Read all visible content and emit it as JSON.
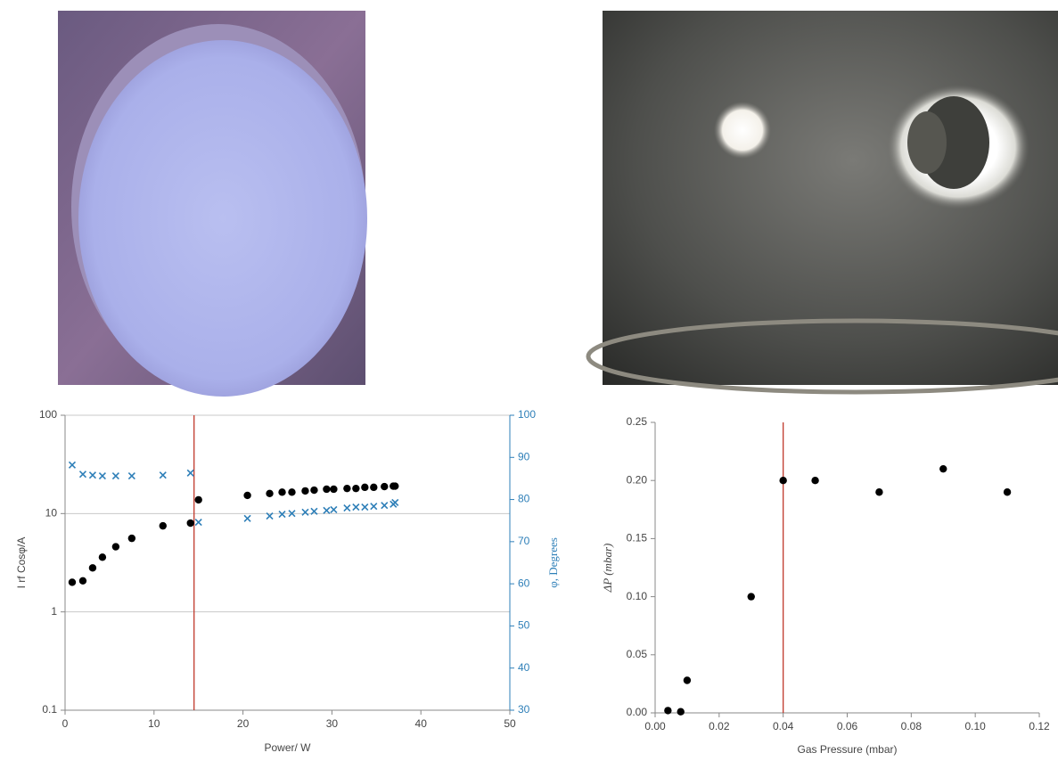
{
  "chart_data": [
    {
      "type": "scatter",
      "xlabel": "Power/ W",
      "ylabel": "I rf Cosφ/A",
      "y2label": "φ, Degrees",
      "xlim": [
        0,
        50
      ],
      "xticks": [
        0,
        10,
        20,
        30,
        40,
        50
      ],
      "ylim": [
        0.1,
        100
      ],
      "yticks": [
        0.1,
        1,
        10,
        100
      ],
      "yscale": "log",
      "y2lim": [
        30,
        100
      ],
      "y2ticks": [
        30,
        40,
        50,
        60,
        70,
        80,
        90,
        100
      ],
      "y2color": "#2e7fb8",
      "grid": true,
      "vline": 14.5,
      "vline_color": "#c0392b",
      "series": [
        {
          "color": "#000000",
          "marker": "circle",
          "x": [
            0.8,
            2.0,
            3.1,
            4.2,
            5.7,
            7.5,
            11.0,
            14.1,
            15.0,
            20.5,
            23.0,
            24.4,
            25.5,
            27.0,
            28.0,
            29.4,
            30.2,
            31.7,
            32.7,
            33.7,
            34.7,
            35.9,
            36.9,
            37.1
          ],
          "values": [
            2.0,
            2.07,
            2.8,
            3.6,
            4.6,
            5.6,
            7.5,
            8.0,
            13.8,
            15.3,
            16,
            16.5,
            16.5,
            17,
            17.3,
            17.7,
            17.7,
            18,
            18,
            18.5,
            18.5,
            18.8,
            19,
            19
          ]
        },
        {
          "axis": "y2",
          "color": "#2e7fb8",
          "marker": "x",
          "x": [
            0.8,
            2.0,
            3.1,
            4.2,
            5.7,
            7.5,
            11.0,
            14.1,
            15.0,
            20.5,
            23.0,
            24.4,
            25.5,
            27.0,
            28.0,
            29.4,
            30.2,
            31.7,
            32.7,
            33.7,
            34.7,
            35.9,
            36.9,
            37.1
          ],
          "values": [
            88.2,
            86,
            85.8,
            85.6,
            85.6,
            85.6,
            85.8,
            86.3,
            74.6,
            75.5,
            76.1,
            76.5,
            76.7,
            77,
            77.2,
            77.4,
            77.6,
            78,
            78.2,
            78.2,
            78.4,
            78.6,
            78.9,
            79.3
          ]
        }
      ]
    },
    {
      "type": "scatter",
      "xlabel": "Gas Pressure (mbar)",
      "ylabel": "ΔP (mbar)",
      "xlim": [
        0,
        0.12
      ],
      "xticks": [
        {
          "value": 0,
          "label": "0.00"
        },
        {
          "value": 0.02,
          "label": "0.02"
        },
        {
          "value": 0.04,
          "label": "0.04"
        },
        {
          "value": 0.06,
          "label": "0.06"
        },
        {
          "value": 0.08,
          "label": "0.08"
        },
        {
          "value": 0.1,
          "label": "0.10"
        },
        {
          "value": 0.12,
          "label": "0.12"
        }
      ],
      "ylim": [
        0,
        0.25
      ],
      "yticks": [
        {
          "value": 0,
          "label": "0.00"
        },
        {
          "value": 0.05,
          "label": "0.05"
        },
        {
          "value": 0.1,
          "label": "0.10"
        },
        {
          "value": 0.15,
          "label": "0.15"
        },
        {
          "value": 0.2,
          "label": "0.20"
        },
        {
          "value": 0.25,
          "label": "0.25"
        }
      ],
      "grid": false,
      "vline": 0.04,
      "vline_color": "#c0392b",
      "series": [
        {
          "color": "#000000",
          "marker": "circle",
          "x": [
            0.004,
            0.008,
            0.01,
            0.03,
            0.04,
            0.05,
            0.07,
            0.09,
            0.11
          ],
          "values": [
            0.002,
            0.001,
            0.028,
            0.1,
            0.2,
            0.2,
            0.19,
            0.21,
            0.19
          ]
        }
      ]
    }
  ]
}
